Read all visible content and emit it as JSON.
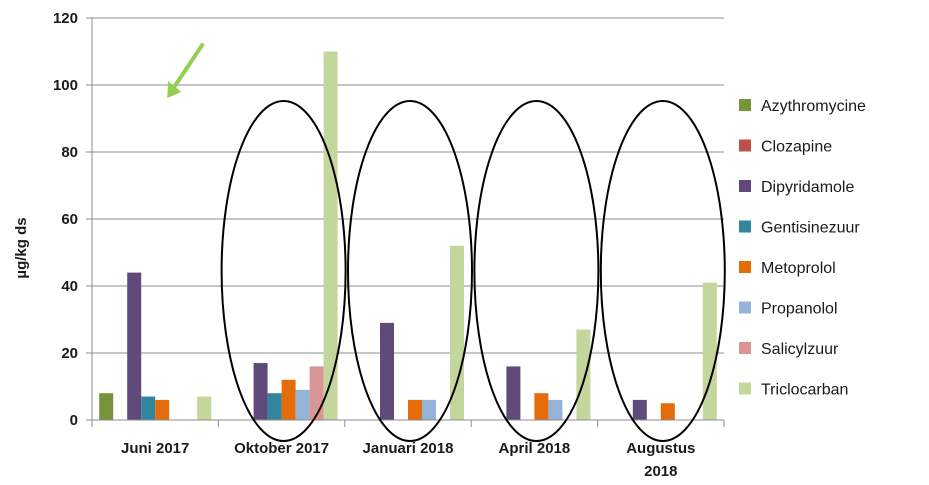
{
  "chart_data": {
    "type": "bar",
    "title": "",
    "xlabel": "",
    "ylabel": "µg/kg ds",
    "ylim": [
      0,
      120
    ],
    "yticks": [
      0,
      20,
      40,
      60,
      80,
      100,
      120
    ],
    "grid": "horizontal",
    "legend_position": "right",
    "categories": [
      [
        "Juni 2017"
      ],
      [
        "Oktober 2017"
      ],
      [
        "Januari 2018"
      ],
      [
        "April 2018"
      ],
      [
        "Augustus",
        "2018"
      ]
    ],
    "series": [
      {
        "name": "Azythromycine",
        "color": "#77933c",
        "values": [
          8,
          null,
          null,
          null,
          null
        ]
      },
      {
        "name": "Clozapine",
        "color": "#c0504d",
        "values": [
          null,
          null,
          null,
          null,
          null
        ]
      },
      {
        "name": "Dipyridamole",
        "color": "#604a7b",
        "values": [
          44,
          17,
          29,
          16,
          6
        ]
      },
      {
        "name": "Gentisinezuur",
        "color": "#31859c",
        "values": [
          7,
          8,
          null,
          null,
          null
        ]
      },
      {
        "name": "Metoprolol",
        "color": "#e46c0a",
        "values": [
          6,
          12,
          6,
          8,
          5
        ]
      },
      {
        "name": "Propanolol",
        "color": "#95b3d7",
        "values": [
          null,
          9,
          6,
          6,
          null
        ]
      },
      {
        "name": "Salicylzuur",
        "color": "#d99694",
        "values": [
          null,
          16,
          null,
          null,
          null
        ]
      },
      {
        "name": "Triclocarban",
        "color": "#c3d69b",
        "values": [
          7,
          110,
          52,
          27,
          41
        ]
      }
    ],
    "annotations": [
      {
        "type": "arrow",
        "color": "#92d050",
        "target_category": "Juni 2017"
      },
      {
        "type": "ellipse",
        "color": "#000000",
        "target_category": "Oktober 2017"
      },
      {
        "type": "ellipse",
        "color": "#000000",
        "target_category": "Januari 2018"
      },
      {
        "type": "ellipse",
        "color": "#000000",
        "target_category": "April 2018"
      },
      {
        "type": "ellipse",
        "color": "#000000",
        "target_category": "Augustus 2018"
      }
    ]
  }
}
